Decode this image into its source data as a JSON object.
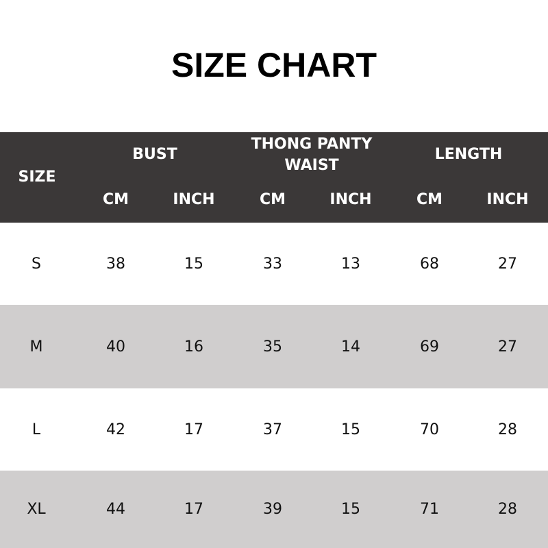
{
  "title": "SIZE CHART",
  "colors": {
    "header_bg": "#3b3838",
    "alt_row_bg": "#d0cece"
  },
  "header": {
    "size": "SIZE",
    "groups": [
      {
        "label": "BUST",
        "sub": [
          "CM",
          "INCH"
        ]
      },
      {
        "label": "THONG PANTY WAIST",
        "sub": [
          "CM",
          "INCH"
        ]
      },
      {
        "label": "LENGTH",
        "sub": [
          "CM",
          "INCH"
        ]
      }
    ]
  },
  "rows": [
    [
      "S",
      "38",
      "15",
      "33",
      "13",
      "68",
      "27"
    ],
    [
      "M",
      "40",
      "16",
      "35",
      "14",
      "69",
      "27"
    ],
    [
      "L",
      "42",
      "17",
      "37",
      "15",
      "70",
      "28"
    ],
    [
      "XL",
      "44",
      "17",
      "39",
      "15",
      "71",
      "28"
    ]
  ]
}
